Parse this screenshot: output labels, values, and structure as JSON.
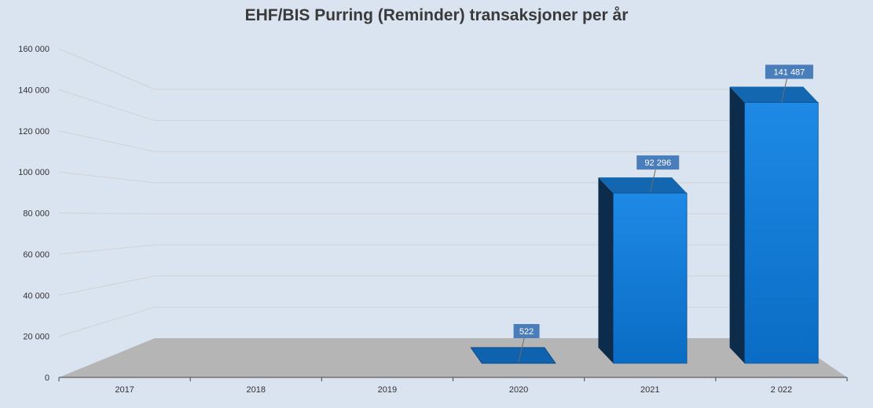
{
  "chart_data": {
    "type": "bar",
    "title": "EHF/BIS Purring (Reminder) transaksjoner per år",
    "categories": [
      "2017",
      "2018",
      "2019",
      "2020",
      "2021",
      "2 022"
    ],
    "values": [
      0,
      0,
      0,
      522,
      92296,
      141487
    ],
    "data_labels": [
      "",
      "",
      "",
      "522",
      "92 296",
      "141 487"
    ],
    "ylim": [
      0,
      160000
    ],
    "yticks": [
      0,
      20000,
      40000,
      60000,
      80000,
      100000,
      120000,
      140000,
      160000
    ],
    "ytick_labels": [
      "0",
      "20 000",
      "40 000",
      "60 000",
      "80 000",
      "100 000",
      "120 000",
      "140 000",
      "160 000"
    ],
    "xlabel": "",
    "ylabel": "",
    "grid": true,
    "legend": "none",
    "three_d": true,
    "colors": {
      "background": "#dae3f0",
      "bar_front_top": "#1e8ae6",
      "bar_front_bottom": "#0a6cc4",
      "bar_side": "#0d2b4b",
      "bar_top": "#1366b0",
      "floor": "#b5b5b5",
      "gridline": "#d2d2d2",
      "label_box": "#4a7ebb",
      "label_text": "#ffffff",
      "axis_text": "#333333"
    }
  }
}
